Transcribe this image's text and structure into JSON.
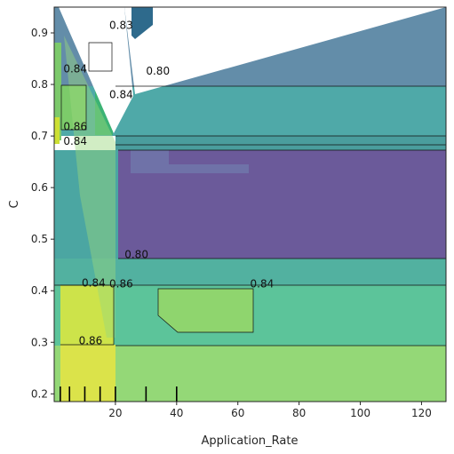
{
  "chart_data": {
    "type": "contour",
    "title": "",
    "xlabel": "Application_Rate",
    "ylabel": "C",
    "xlim": [
      0,
      128
    ],
    "ylim": [
      0.185,
      0.95
    ],
    "x_ticks": [
      20,
      40,
      60,
      80,
      100,
      120
    ],
    "x_tick_labels": [
      "20",
      "40",
      "60",
      "80",
      "100",
      "120"
    ],
    "y_ticks": [
      0.2,
      0.3,
      0.4,
      0.5,
      0.6,
      0.7,
      0.8,
      0.9
    ],
    "y_tick_labels": [
      "0.2",
      "0.3",
      "0.4",
      "0.5",
      "0.6",
      "0.7",
      "0.8",
      "0.9"
    ],
    "colormap": "viridis",
    "grid": false,
    "legend": "none",
    "colors": {
      "level_0_78": "#440154",
      "level_0_80": "#3b528b",
      "level_0_82": "#21918c",
      "level_0_84": "#5ec962",
      "level_0_86": "#cde11d",
      "level_0_88": "#fde725"
    },
    "regions": [
      {
        "name": "band-top",
        "value": 0.81,
        "x": [
          0,
          128
        ],
        "y": [
          0.8,
          0.95
        ]
      },
      {
        "name": "band-upper",
        "value": 0.82,
        "x": [
          0,
          128
        ],
        "y": [
          0.7,
          0.8
        ]
      },
      {
        "name": "band-upper-strip",
        "value": 0.8,
        "x": [
          20,
          128
        ],
        "y": [
          0.68,
          0.715
        ]
      },
      {
        "name": "block-middle",
        "value": 0.78,
        "x": [
          20,
          128
        ],
        "y": [
          0.47,
          0.68
        ]
      },
      {
        "name": "band-mid",
        "value": 0.82,
        "x": [
          0,
          128
        ],
        "y": [
          0.42,
          0.47
        ]
      },
      {
        "name": "block-lower-left",
        "value": 0.84,
        "x": [
          20,
          65
        ],
        "y": [
          0.34,
          0.42
        ]
      },
      {
        "name": "band-lower",
        "value": 0.83,
        "x": [
          0,
          128
        ],
        "y": [
          0.3,
          0.42
        ]
      },
      {
        "name": "band-bottom",
        "value": 0.84,
        "x": [
          0,
          128
        ],
        "y": [
          0.185,
          0.3
        ]
      },
      {
        "name": "block-bottom-left",
        "value": 0.87,
        "x": [
          0,
          20
        ],
        "y": [
          0.185,
          0.42
        ]
      }
    ],
    "contour_labels": [
      {
        "text": "0.83",
        "x": 18,
        "y": 0.915
      },
      {
        "text": "0.80",
        "x": 30,
        "y": 0.826
      },
      {
        "text": "0.84",
        "x": 18,
        "y": 0.78
      },
      {
        "text": "0.86",
        "x": 3,
        "y": 0.718
      },
      {
        "text": "0.84",
        "x": 3,
        "y": 0.69
      },
      {
        "text": "0.84",
        "x": 3,
        "y": 0.83
      },
      {
        "text": "0.80",
        "x": 23,
        "y": 0.47
      },
      {
        "text": "0.86",
        "x": 18,
        "y": 0.413
      },
      {
        "text": "0.84",
        "x": 64,
        "y": 0.413
      },
      {
        "text": "0.84",
        "x": 9,
        "y": 0.415
      },
      {
        "text": "0.86",
        "x": 8,
        "y": 0.303
      }
    ],
    "rug_x": [
      2,
      5,
      10,
      15,
      20,
      30,
      40
    ]
  }
}
